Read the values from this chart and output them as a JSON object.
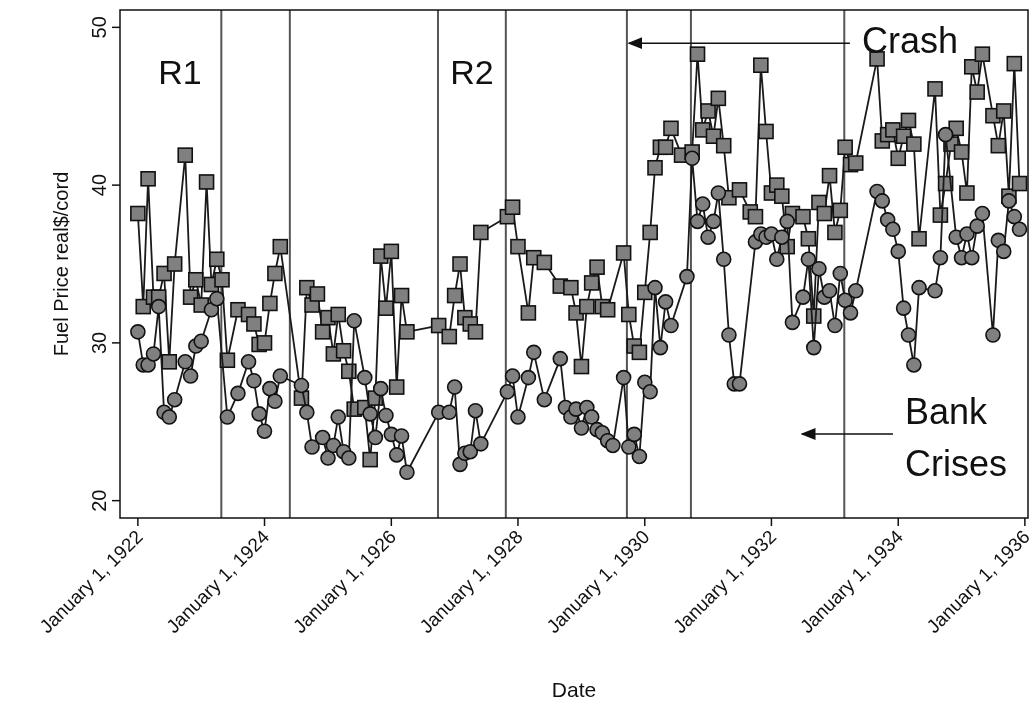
{
  "chart_data": {
    "type": "line",
    "xlabel": "Date",
    "ylabel": "Fuel Price real$/cord",
    "xlim": [
      "1921-09-20",
      "1936-01-19"
    ],
    "ylim": [
      18.9,
      51.1
    ],
    "xticks": [
      {
        "value": "1922-01-01",
        "label": "January 1, 1922"
      },
      {
        "value": "1924-01-01",
        "label": "January 1, 1924"
      },
      {
        "value": "1926-01-01",
        "label": "January 1, 1926"
      },
      {
        "value": "1928-01-01",
        "label": "January 1, 1928"
      },
      {
        "value": "1930-01-01",
        "label": "January 1, 1930"
      },
      {
        "value": "1932-01-01",
        "label": "January 1, 1932"
      },
      {
        "value": "1934-01-01",
        "label": "January 1, 1934"
      },
      {
        "value": "1936-01-01",
        "label": "January 1, 1936"
      }
    ],
    "yticks": [
      20,
      30,
      40,
      50
    ],
    "grid": false,
    "ref_lines": [
      {
        "axis": "x",
        "value": "1923-04-27",
        "color": "#555555"
      },
      {
        "axis": "x",
        "value": "1924-05-26",
        "color": "#555555"
      },
      {
        "axis": "x",
        "value": "1926-09-27",
        "color": "#555555"
      },
      {
        "axis": "x",
        "value": "1927-10-23",
        "color": "#555555"
      },
      {
        "axis": "x",
        "value": "1929-09-20",
        "color": "#555555"
      },
      {
        "axis": "x",
        "value": "1930-09-24",
        "color": "#555555"
      },
      {
        "axis": "x",
        "value": "1933-02-24",
        "color": "#555555"
      }
    ],
    "annotations": [
      "R1",
      "R2",
      {
        "text": "Crash",
        "x": "1929-09-20",
        "y": 49
      },
      "Bank Crises"
    ],
    "series": [
      {
        "marker": "square",
        "color": "#808080",
        "line_style": "solid",
        "x": [
          "1922-01",
          "1922-02",
          "1922-03",
          "1922-04",
          "1922-05",
          "1922-06",
          "1922-07",
          "1922-08",
          "1922-10",
          "1922-11",
          "1922-12",
          "1923-01",
          "1923-02",
          "1923-03",
          "1923-04",
          "1923-05",
          "1923-06",
          "1923-08",
          "1923-10",
          "1923-11",
          "1923-12",
          "1924-01",
          "1924-02",
          "1924-03",
          "1924-04",
          "1924-08",
          "1924-09",
          "1924-10",
          "1924-11",
          "1924-12",
          "1925-01",
          "1925-02",
          "1925-03",
          "1925-04",
          "1925-05",
          "1925-06",
          "1925-08",
          "1925-09",
          "1925-10",
          "1925-11",
          "1925-12",
          "1926-01",
          "1926-02",
          "1926-03",
          "1926-04",
          "1926-10",
          "1926-12",
          "1927-01",
          "1927-02",
          "1927-03",
          "1927-04",
          "1927-05",
          "1927-06",
          "1927-11",
          "1927-12",
          "1928-01",
          "1928-03",
          "1928-04",
          "1928-06",
          "1928-09",
          "1928-11",
          "1928-12",
          "1929-01",
          "1929-02",
          "1929-03",
          "1929-04",
          "1929-05",
          "1929-06",
          "1929-09",
          "1929-10",
          "1929-11",
          "1929-12",
          "1930-01",
          "1930-02",
          "1930-03",
          "1930-04",
          "1930-05",
          "1930-06",
          "1930-08",
          "1930-10",
          "1930-11",
          "1930-12",
          "1931-01",
          "1931-02",
          "1931-03",
          "1931-04",
          "1931-05",
          "1931-07",
          "1931-09",
          "1931-10",
          "1931-11",
          "1931-12",
          "1932-01",
          "1932-02",
          "1932-03",
          "1932-04",
          "1932-05",
          "1932-07",
          "1932-08",
          "1932-09",
          "1932-10",
          "1932-11",
          "1932-12",
          "1933-01",
          "1933-02",
          "1933-03",
          "1933-04",
          "1933-05",
          "1933-09",
          "1933-10",
          "1933-11",
          "1933-12",
          "1934-01",
          "1934-02",
          "1934-03",
          "1934-04",
          "1934-05",
          "1934-08",
          "1934-09",
          "1934-10",
          "1934-11",
          "1934-12",
          "1935-01",
          "1935-02",
          "1935-03",
          "1935-04",
          "1935-05",
          "1935-07",
          "1935-08",
          "1935-09",
          "1935-10",
          "1935-11",
          "1935-12"
        ],
        "values": [
          38.2,
          32.3,
          40.4,
          32.9,
          32.9,
          34.4,
          28.8,
          35.0,
          41.9,
          32.9,
          34.0,
          32.4,
          40.2,
          33.7,
          35.3,
          34.0,
          28.9,
          32.1,
          31.8,
          31.2,
          29.9,
          30.0,
          32.5,
          34.4,
          36.1,
          26.5,
          33.5,
          32.4,
          33.1,
          30.7,
          31.6,
          29.3,
          31.8,
          29.5,
          28.2,
          25.8,
          25.9,
          22.6,
          26.5,
          35.5,
          32.2,
          35.8,
          27.2,
          33.0,
          30.7,
          31.1,
          30.4,
          33.0,
          35.0,
          31.6,
          31.2,
          30.7,
          37.0,
          38.0,
          38.6,
          36.1,
          31.9,
          35.4,
          35.1,
          33.6,
          33.5,
          31.9,
          28.5,
          32.3,
          33.8,
          34.8,
          32.3,
          32.1,
          35.7,
          31.8,
          29.8,
          29.4,
          33.2,
          37.0,
          41.1,
          42.4,
          42.4,
          43.6,
          41.9,
          42.1,
          48.3,
          43.5,
          44.7,
          43.1,
          45.5,
          42.5,
          39.2,
          39.7,
          38.3,
          38.0,
          47.6,
          43.4,
          39.5,
          40.0,
          39.3,
          36.1,
          38.2,
          38.0,
          36.6,
          31.7,
          38.9,
          38.2,
          40.6,
          37.0,
          38.4,
          42.4,
          41.3,
          41.4,
          48.0,
          42.8,
          43.2,
          43.5,
          41.7,
          43.1,
          44.1,
          42.6,
          36.6,
          46.1,
          38.1,
          40.1,
          42.6,
          43.6,
          42.1,
          39.5,
          47.5,
          45.9,
          48.3,
          44.4,
          42.5,
          44.7,
          39.3,
          47.7,
          40.1
        ]
      },
      {
        "marker": "circle",
        "color": "#808080",
        "line_style": "solid",
        "x": [
          "1922-01",
          "1922-02",
          "1922-03",
          "1922-04",
          "1922-05",
          "1922-06",
          "1922-07",
          "1922-08",
          "1922-10",
          "1922-11",
          "1922-12",
          "1923-01",
          "1923-03",
          "1923-04",
          "1923-06",
          "1923-08",
          "1923-10",
          "1923-11",
          "1923-12",
          "1924-01",
          "1924-02",
          "1924-03",
          "1924-04",
          "1924-08",
          "1924-09",
          "1924-10",
          "1924-12",
          "1925-01",
          "1925-02",
          "1925-03",
          "1925-04",
          "1925-05",
          "1925-06",
          "1925-08",
          "1925-09",
          "1925-10",
          "1925-11",
          "1925-12",
          "1926-01",
          "1926-02",
          "1926-03",
          "1926-04",
          "1926-10",
          "1926-12",
          "1927-01",
          "1927-02",
          "1927-03",
          "1927-04",
          "1927-05",
          "1927-06",
          "1927-11",
          "1927-12",
          "1928-01",
          "1928-03",
          "1928-04",
          "1928-06",
          "1928-09",
          "1928-10",
          "1928-11",
          "1928-12",
          "1929-01",
          "1929-02",
          "1929-03",
          "1929-04",
          "1929-05",
          "1929-06",
          "1929-07",
          "1929-09",
          "1929-10",
          "1929-11",
          "1929-12",
          "1930-01",
          "1930-02",
          "1930-03",
          "1930-04",
          "1930-05",
          "1930-06",
          "1930-09",
          "1930-10",
          "1930-11",
          "1930-12",
          "1931-01",
          "1931-02",
          "1931-03",
          "1931-04",
          "1931-05",
          "1931-06",
          "1931-07",
          "1931-10",
          "1931-11",
          "1931-12",
          "1932-01",
          "1932-02",
          "1932-03",
          "1932-04",
          "1932-05",
          "1932-07",
          "1932-08",
          "1932-09",
          "1932-10",
          "1932-11",
          "1932-12",
          "1933-01",
          "1933-02",
          "1933-03",
          "1933-04",
          "1933-05",
          "1933-09",
          "1933-10",
          "1933-11",
          "1933-12",
          "1934-01",
          "1934-02",
          "1934-03",
          "1934-04",
          "1934-05",
          "1934-08",
          "1934-09",
          "1934-10",
          "1934-12",
          "1935-01",
          "1935-02",
          "1935-03",
          "1935-04",
          "1935-05",
          "1935-07",
          "1935-08",
          "1935-09",
          "1935-10",
          "1935-11",
          "1935-12"
        ],
        "values": [
          30.7,
          28.6,
          28.6,
          29.3,
          32.3,
          25.6,
          25.3,
          26.4,
          28.8,
          27.9,
          29.8,
          30.1,
          32.1,
          32.8,
          25.3,
          26.8,
          28.8,
          27.6,
          25.5,
          24.4,
          27.1,
          26.3,
          27.9,
          27.3,
          25.6,
          23.4,
          24.0,
          22.7,
          23.5,
          25.3,
          23.1,
          22.7,
          31.4,
          27.8,
          25.5,
          24.0,
          27.1,
          25.4,
          24.2,
          22.9,
          24.1,
          21.8,
          25.6,
          25.6,
          27.2,
          22.3,
          23.0,
          23.1,
          25.7,
          23.6,
          26.9,
          27.9,
          25.3,
          27.8,
          29.4,
          26.4,
          29.0,
          25.9,
          25.3,
          25.8,
          24.6,
          25.9,
          25.3,
          24.5,
          24.3,
          23.8,
          23.5,
          27.8,
          23.4,
          24.2,
          22.8,
          27.5,
          26.9,
          33.5,
          29.7,
          32.6,
          31.1,
          34.2,
          41.7,
          37.7,
          38.8,
          36.7,
          37.7,
          39.5,
          35.3,
          30.5,
          27.4,
          27.4,
          36.4,
          36.9,
          36.7,
          36.9,
          35.3,
          36.7,
          37.7,
          31.3,
          32.9,
          35.3,
          29.7,
          34.7,
          32.9,
          33.3,
          31.1,
          34.4,
          32.7,
          31.9,
          33.3,
          39.6,
          39.0,
          37.8,
          37.2,
          35.8,
          32.2,
          30.5,
          28.6,
          33.5,
          33.3,
          35.4,
          43.2,
          36.7,
          35.4,
          36.9,
          35.4,
          37.4,
          38.2,
          30.5,
          36.5,
          35.8,
          39.0,
          38.0,
          37.2
        ]
      }
    ]
  }
}
